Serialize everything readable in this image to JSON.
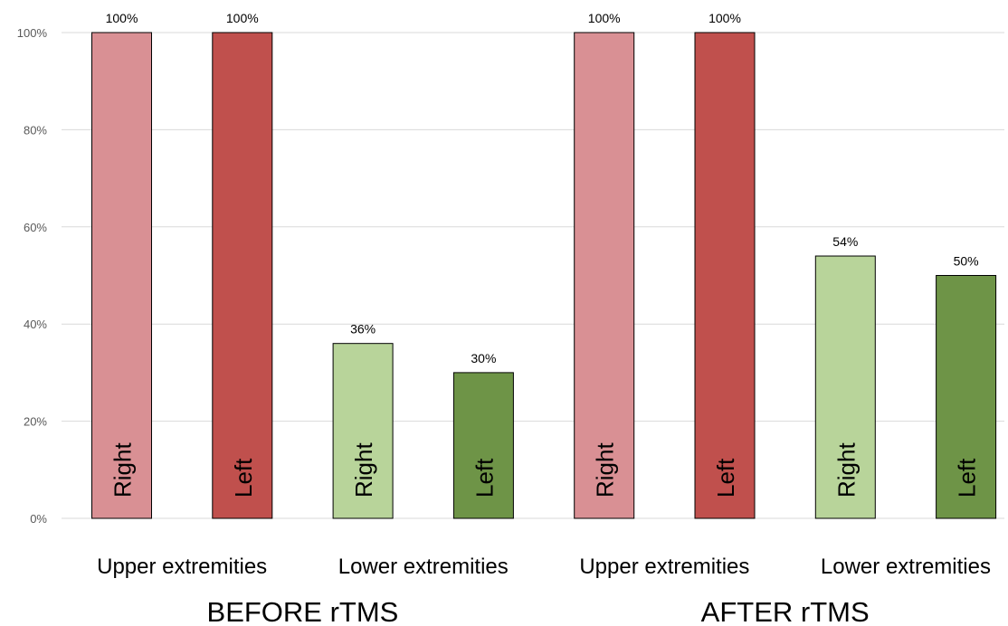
{
  "chart_data": {
    "type": "bar",
    "title": "",
    "xlabel": "",
    "ylabel": "",
    "ylim": [
      0,
      100
    ],
    "y_ticks": [
      "0%",
      "20%",
      "40%",
      "60%",
      "80%",
      "100%"
    ],
    "grid": true,
    "legend": "none",
    "bars": [
      {
        "group": "BEFORE rTMS",
        "category": "Upper extremities",
        "label": "Right",
        "value": 100,
        "data_label": "100%",
        "color": "#d99094"
      },
      {
        "group": "BEFORE rTMS",
        "category": "Upper extremities",
        "label": "Left",
        "value": 100,
        "data_label": "100%",
        "color": "#c0504d"
      },
      {
        "group": "BEFORE rTMS",
        "category": "Lower extremities",
        "label": "Right",
        "value": 36,
        "data_label": "36%",
        "color": "#b8d49a"
      },
      {
        "group": "BEFORE rTMS",
        "category": "Lower extremities",
        "label": "Left",
        "value": 30,
        "data_label": "30%",
        "color": "#6e9447"
      },
      {
        "group": "AFTER rTMS",
        "category": "Upper extremities",
        "label": "Right",
        "value": 100,
        "data_label": "100%",
        "color": "#d99094"
      },
      {
        "group": "AFTER rTMS",
        "category": "Upper extremities",
        "label": "Left",
        "value": 100,
        "data_label": "100%",
        "color": "#c0504d"
      },
      {
        "group": "AFTER rTMS",
        "category": "Lower extremities",
        "label": "Right",
        "value": 54,
        "data_label": "54%",
        "color": "#b8d49a"
      },
      {
        "group": "AFTER rTMS",
        "category": "Lower extremities",
        "label": "Left",
        "value": 50,
        "data_label": "50%",
        "color": "#6e9447"
      }
    ],
    "categories": [
      "Upper extremities",
      "Lower extremities",
      "Upper extremities",
      "Lower extremities"
    ],
    "groups": [
      "BEFORE rTMS",
      "AFTER rTMS"
    ]
  }
}
